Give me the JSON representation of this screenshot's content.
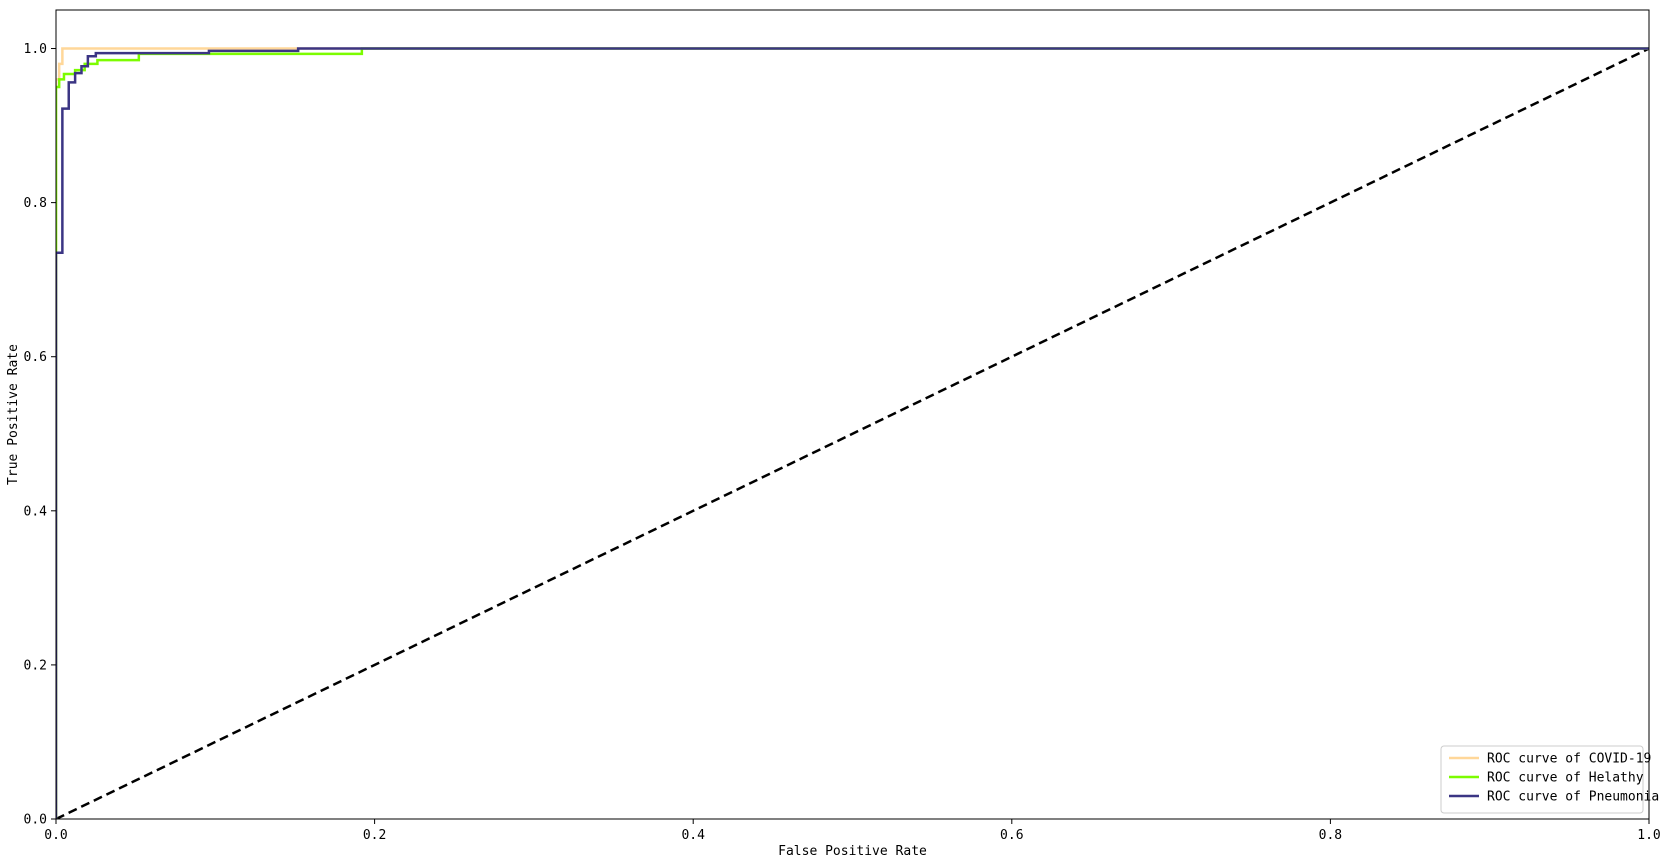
{
  "chart_data": {
    "type": "line",
    "title": "",
    "xlabel": "False Positive Rate",
    "ylabel": "True Positive Rate",
    "xlim": [
      0.0,
      1.0
    ],
    "ylim": [
      0.0,
      1.05
    ],
    "xticks": [
      "0.0",
      "0.2",
      "0.4",
      "0.6",
      "0.8",
      "1.0"
    ],
    "yticks": [
      "0.0",
      "0.2",
      "0.4",
      "0.6",
      "0.8",
      "1.0"
    ],
    "grid": false,
    "legend_position": "bottom-right",
    "series": [
      {
        "name": "ROC curve of COVID-19",
        "color": "#ffd799",
        "x": [
          0.0,
          0.0,
          0.002,
          0.002,
          0.004,
          0.004,
          1.0
        ],
        "y": [
          0.0,
          0.96,
          0.96,
          0.98,
          0.98,
          1.0,
          1.0
        ]
      },
      {
        "name": "ROC curve of Helathy",
        "color": "#7cfc00",
        "x": [
          0.0,
          0.0,
          0.002,
          0.002,
          0.005,
          0.005,
          0.012,
          0.012,
          0.018,
          0.018,
          0.026,
          0.026,
          0.052,
          0.052,
          0.095,
          0.095,
          0.192,
          0.192,
          1.0
        ],
        "y": [
          0.0,
          0.95,
          0.95,
          0.96,
          0.96,
          0.967,
          0.967,
          0.972,
          0.972,
          0.98,
          0.98,
          0.985,
          0.985,
          0.993,
          0.993,
          0.993,
          0.993,
          1.0,
          1.0
        ]
      },
      {
        "name": "ROC curve of Pneumonia",
        "color": "#3b3584",
        "x": [
          0.0,
          0.0,
          0.004,
          0.004,
          0.008,
          0.008,
          0.012,
          0.012,
          0.016,
          0.016,
          0.02,
          0.02,
          0.025,
          0.025,
          0.096,
          0.096,
          0.152,
          0.152,
          1.0
        ],
        "y": [
          0.0,
          0.735,
          0.735,
          0.922,
          0.922,
          0.956,
          0.956,
          0.968,
          0.968,
          0.977,
          0.977,
          0.99,
          0.99,
          0.994,
          0.994,
          0.997,
          0.997,
          1.0,
          1.0
        ]
      }
    ],
    "reference_line": {
      "style": "dashed",
      "color": "#000000",
      "x": [
        0.0,
        1.0
      ],
      "y": [
        0.0,
        1.0
      ]
    }
  }
}
